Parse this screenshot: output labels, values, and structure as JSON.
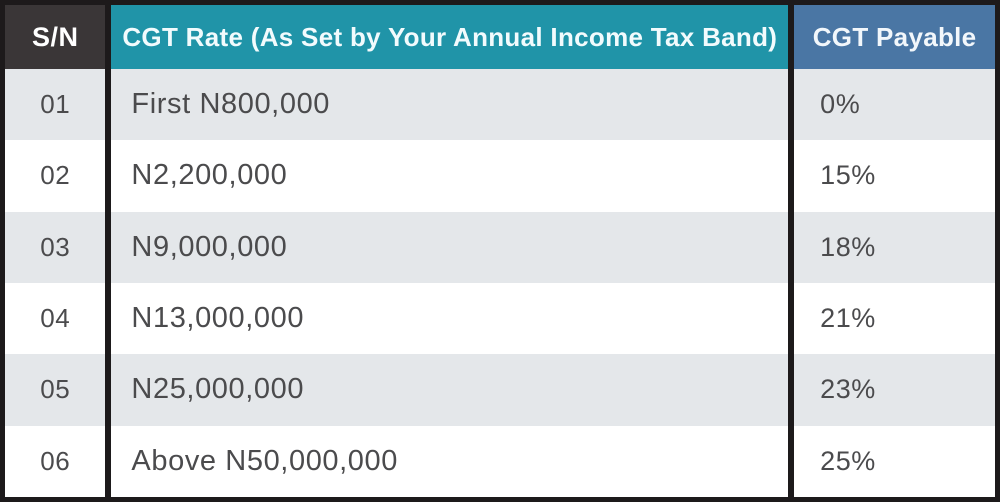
{
  "table": {
    "columns": [
      {
        "label": "S/N"
      },
      {
        "label": "CGT Rate (As Set by Your Annual Income Tax Band)"
      },
      {
        "label": "CGT Payable"
      }
    ],
    "rows": [
      {
        "sn": "01",
        "band": "First N800,000",
        "payable": "0%"
      },
      {
        "sn": "02",
        "band": "N2,200,000",
        "payable": "15%"
      },
      {
        "sn": "03",
        "band": "N9,000,000",
        "payable": "18%"
      },
      {
        "sn": "04",
        "band": "N13,000,000",
        "payable": "21%"
      },
      {
        "sn": "05",
        "band": "N25,000,000",
        "payable": "23%"
      },
      {
        "sn": "06",
        "band": "Above N50,000,000",
        "payable": "25%"
      }
    ]
  },
  "colors": {
    "sn_header_bg": "#3a3637",
    "rate_header_bg": "#2094a8",
    "payable_header_bg": "#4a76a4",
    "row_alt_bg": "#e4e7ea",
    "row_bg": "#ffffff",
    "frame_border": "#1d1a1b",
    "body_text": "#4b4b4d",
    "header_text": "#ffffff"
  },
  "chart_data": {
    "type": "table",
    "title": "CGT rates by annual income tax band",
    "columns": [
      "S/N",
      "CGT Rate (As Set by Your Annual Income Tax Band)",
      "CGT Payable"
    ],
    "rows": [
      [
        "01",
        "First N800,000",
        "0%"
      ],
      [
        "02",
        "N2,200,000",
        "15%"
      ],
      [
        "03",
        "N9,000,000",
        "18%"
      ],
      [
        "04",
        "N13,000,000",
        "21%"
      ],
      [
        "05",
        "N25,000,000",
        "23%"
      ],
      [
        "06",
        "Above N50,000,000",
        "25%"
      ]
    ]
  }
}
